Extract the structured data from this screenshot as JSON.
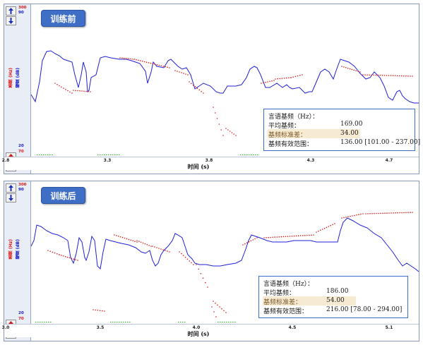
{
  "panels": [
    {
      "title": "训练前",
      "scale": {
        "top_red": "300",
        "top_blue": "90",
        "bottom_blue": "20",
        "bottom_red": "70"
      },
      "axis_labels": {
        "pitch": "基频 (Hz)",
        "amplitude": "幅度 (dB)"
      },
      "x_ticks": [
        "2.8",
        "3.3",
        "3.8",
        "4.3",
        "4.7"
      ],
      "x_title": "时间 (s)",
      "info": {
        "heading": "言语基频（Hz）：",
        "mean_label": "平均基频：",
        "mean_value": "169.00",
        "sd_label": "基频标准差：",
        "sd_value": "34.00",
        "range_label": "基频有效范围：",
        "range_value": "136.00 [101.00 - 237.00]"
      }
    },
    {
      "title": "训练后",
      "scale": {
        "top_red": "300",
        "top_blue": "90",
        "bottom_blue": "20",
        "bottom_red": "70"
      },
      "axis_labels": {
        "pitch": "基频 (Hz)",
        "amplitude": "幅度 (dB)"
      },
      "x_ticks": [
        "3.0",
        "3.5",
        "4.0",
        "4.5",
        "5.1"
      ],
      "x_title": "时间 (s)",
      "info": {
        "heading": "言语基频（Hz）：",
        "mean_label": "平均基频：",
        "mean_value": "186.00",
        "sd_label": "基频标准差：",
        "sd_value": "54.00",
        "range_label": "基频有效范围：",
        "range_value": "216.00 [78.00 - 294.00]"
      }
    }
  ],
  "colors": {
    "pitch": "#e01818",
    "amplitude": "#2020d8",
    "title_bg": "#3f6ec6"
  }
}
